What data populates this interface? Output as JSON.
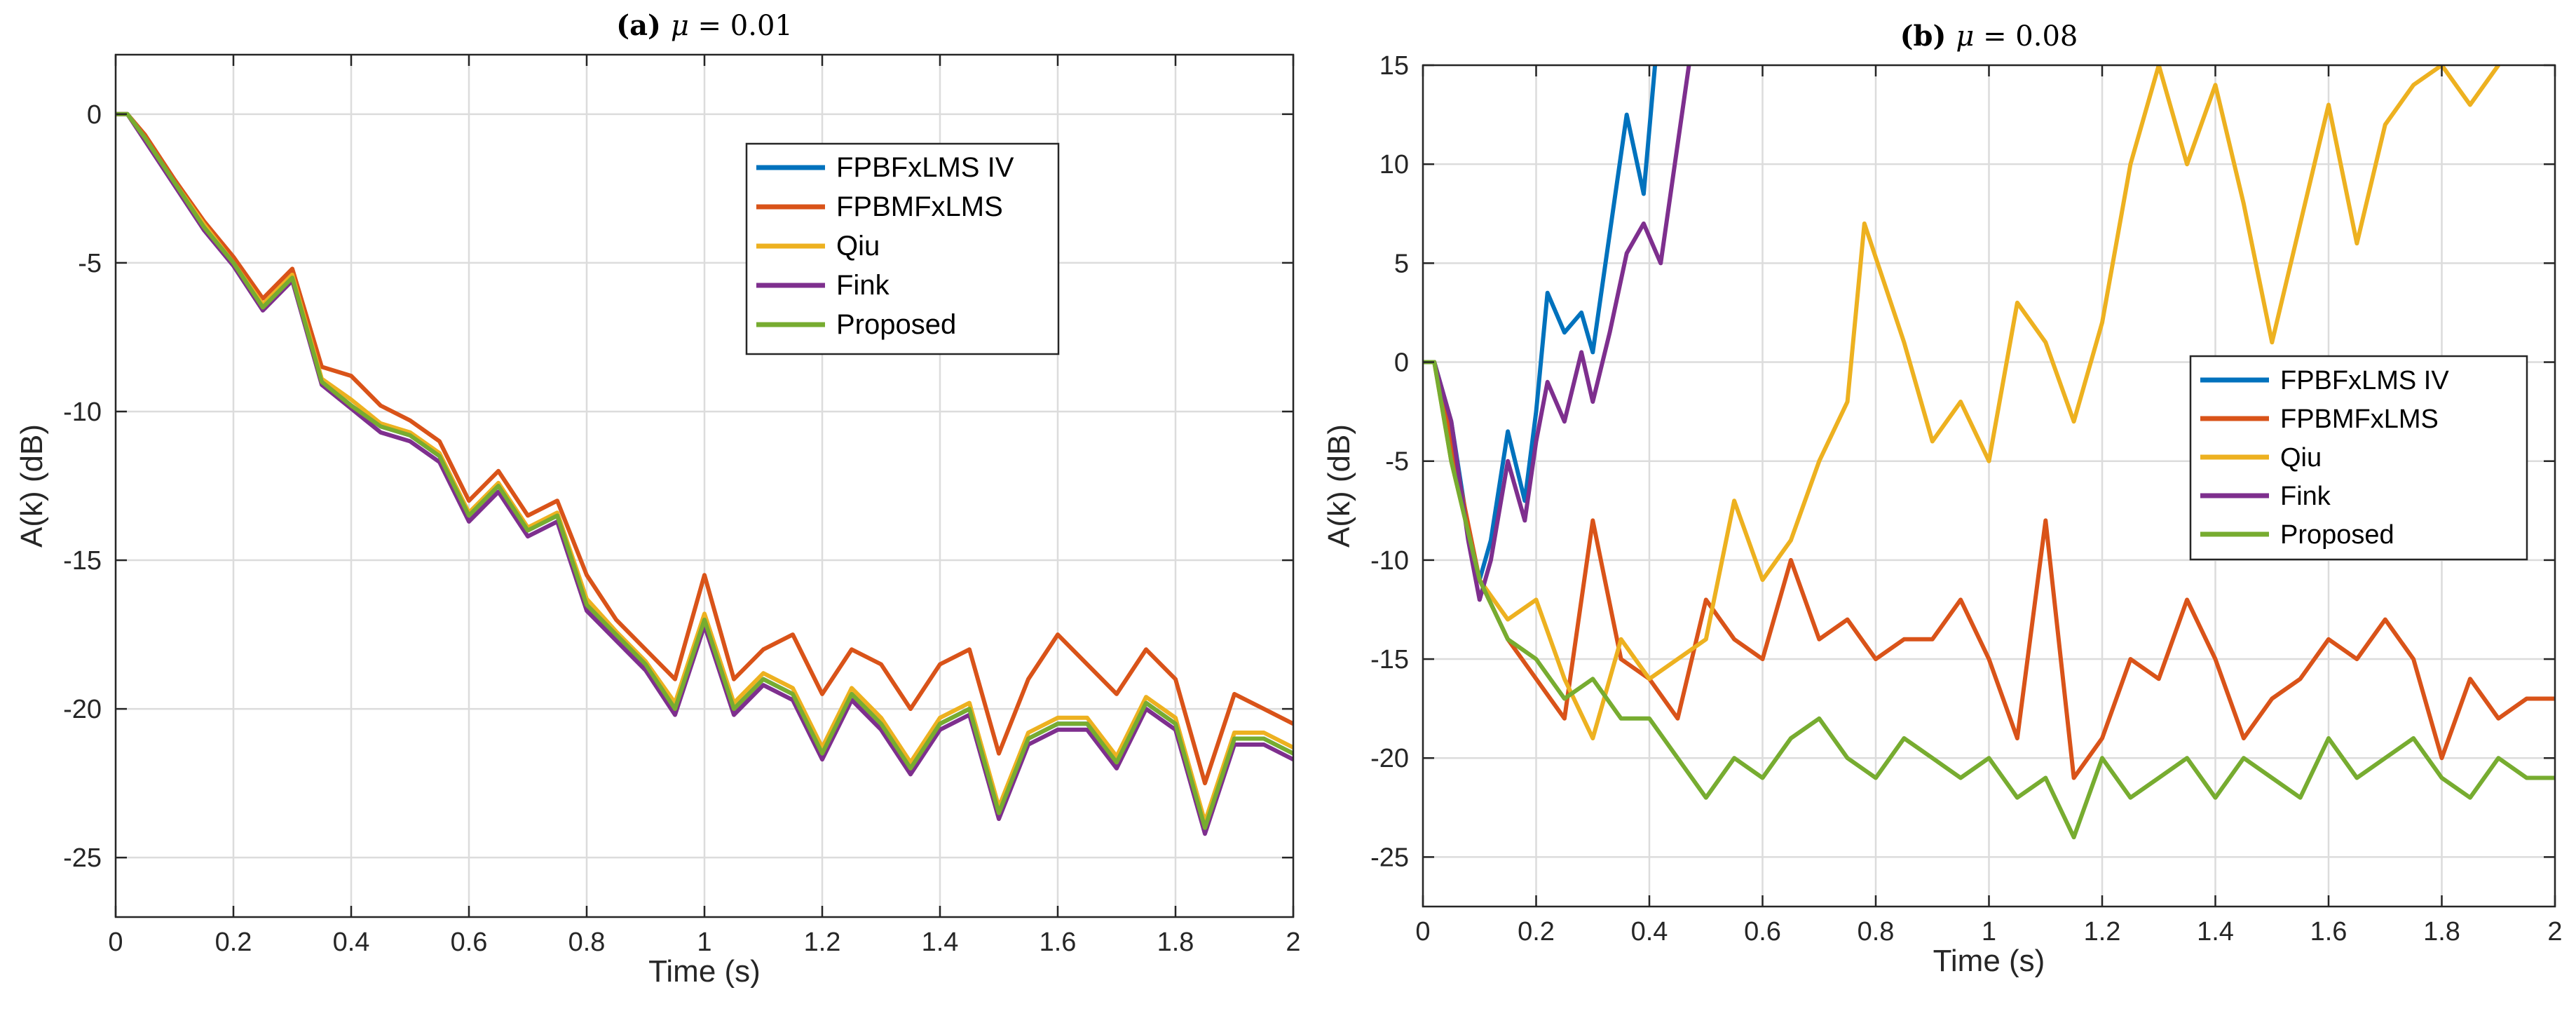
{
  "chart_data": [
    {
      "type": "line",
      "title": "(a) μ = 0.01",
      "title_prefix": "(a)",
      "title_symbol": "μ",
      "title_rest": "= 0.01",
      "xlabel": "Time (s)",
      "ylabel": "A(k) (dB)",
      "xlim": [
        0,
        2
      ],
      "ylim": [
        -27,
        2
      ],
      "xticks": [
        0,
        0.2,
        0.4,
        0.6,
        0.8,
        1,
        1.2,
        1.4,
        1.6,
        1.8,
        2
      ],
      "xtick_labels": [
        "0",
        "0.2",
        "0.4",
        "0.6",
        "0.8",
        "1",
        "1.2",
        "1.4",
        "1.6",
        "1.8",
        "2"
      ],
      "yticks": [
        0,
        -5,
        -10,
        -15,
        -20,
        -25
      ],
      "ytick_labels": [
        "0",
        "-5",
        "-10",
        "-15",
        "-20",
        "-25"
      ],
      "grid": true,
      "legend_position": "top-right",
      "series": [
        {
          "name": "FPBFxLMS IV",
          "color": "#0072BD",
          "x": [
            0,
            0.02,
            0.05,
            0.1,
            0.15,
            0.2,
            0.25,
            0.3,
            0.35,
            0.4,
            0.45,
            0.5,
            0.55,
            0.6,
            0.65,
            0.7,
            0.75,
            0.8,
            0.85,
            0.9,
            0.95,
            1.0,
            1.05,
            1.1,
            1.15,
            1.2,
            1.25,
            1.3,
            1.35,
            1.4,
            1.45,
            1.5,
            1.55,
            1.6,
            1.65,
            1.7,
            1.75,
            1.8,
            1.85,
            1.9,
            1.95,
            2.0
          ],
          "y": [
            0,
            0,
            -0.8,
            -2.3,
            -3.8,
            -5,
            -6.5,
            -5.5,
            -9,
            -9.8,
            -10.5,
            -10.8,
            -11.5,
            -13.5,
            -12.5,
            -14,
            -13.5,
            -16.5,
            -17.5,
            -18.5,
            -20,
            -17,
            -20,
            -19,
            -19.5,
            -21.5,
            -19.5,
            -20.5,
            -22,
            -20.5,
            -20,
            -23.5,
            -21,
            -20.5,
            -20.5,
            -21.8,
            -19.8,
            -20.5,
            -24,
            -21,
            -21,
            -21.5
          ]
        },
        {
          "name": "FPBMFxLMS",
          "color": "#D95319",
          "x": [
            0,
            0.02,
            0.05,
            0.1,
            0.15,
            0.2,
            0.25,
            0.3,
            0.35,
            0.4,
            0.45,
            0.5,
            0.55,
            0.6,
            0.65,
            0.7,
            0.75,
            0.8,
            0.85,
            0.9,
            0.95,
            1.0,
            1.05,
            1.1,
            1.15,
            1.2,
            1.25,
            1.3,
            1.35,
            1.4,
            1.45,
            1.5,
            1.55,
            1.6,
            1.65,
            1.7,
            1.75,
            1.8,
            1.85,
            1.9,
            1.95,
            2.0
          ],
          "y": [
            0,
            0,
            -0.7,
            -2.2,
            -3.6,
            -4.8,
            -6.2,
            -5.2,
            -8.5,
            -8.8,
            -9.8,
            -10.3,
            -11,
            -13,
            -12,
            -13.5,
            -13,
            -15.5,
            -17,
            -18,
            -19,
            -15.5,
            -19,
            -18,
            -17.5,
            -19.5,
            -18,
            -18.5,
            -20,
            -18.5,
            -18,
            -21.5,
            -19,
            -17.5,
            -18.5,
            -19.5,
            -18,
            -19,
            -22.5,
            -19.5,
            -20,
            -20.5
          ]
        },
        {
          "name": "Qiu",
          "color": "#EDB120",
          "x": [
            0,
            0.02,
            0.05,
            0.1,
            0.15,
            0.2,
            0.25,
            0.3,
            0.35,
            0.4,
            0.45,
            0.5,
            0.55,
            0.6,
            0.65,
            0.7,
            0.75,
            0.8,
            0.85,
            0.9,
            0.95,
            1.0,
            1.05,
            1.1,
            1.15,
            1.2,
            1.25,
            1.3,
            1.35,
            1.4,
            1.45,
            1.5,
            1.55,
            1.6,
            1.65,
            1.7,
            1.75,
            1.8,
            1.85,
            1.9,
            1.95,
            2.0
          ],
          "y": [
            0,
            0,
            -0.8,
            -2.3,
            -3.7,
            -5,
            -6.4,
            -5.4,
            -8.9,
            -9.6,
            -10.4,
            -10.7,
            -11.4,
            -13.4,
            -12.4,
            -13.9,
            -13.4,
            -16.3,
            -17.4,
            -18.4,
            -19.8,
            -16.8,
            -19.8,
            -18.8,
            -19.3,
            -21.3,
            -19.3,
            -20.3,
            -21.8,
            -20.3,
            -19.8,
            -23.3,
            -20.8,
            -20.3,
            -20.3,
            -21.6,
            -19.6,
            -20.3,
            -23.8,
            -20.8,
            -20.8,
            -21.3
          ]
        },
        {
          "name": "Fink",
          "color": "#7E2F8E",
          "x": [
            0,
            0.02,
            0.05,
            0.1,
            0.15,
            0.2,
            0.25,
            0.3,
            0.35,
            0.4,
            0.45,
            0.5,
            0.55,
            0.6,
            0.65,
            0.7,
            0.75,
            0.8,
            0.85,
            0.9,
            0.95,
            1.0,
            1.05,
            1.1,
            1.15,
            1.2,
            1.25,
            1.3,
            1.35,
            1.4,
            1.45,
            1.5,
            1.55,
            1.6,
            1.65,
            1.7,
            1.75,
            1.8,
            1.85,
            1.9,
            1.95,
            2.0
          ],
          "y": [
            0,
            0,
            -0.9,
            -2.4,
            -3.9,
            -5.1,
            -6.6,
            -5.6,
            -9.1,
            -9.9,
            -10.7,
            -11,
            -11.7,
            -13.7,
            -12.7,
            -14.2,
            -13.7,
            -16.7,
            -17.7,
            -18.7,
            -20.2,
            -17.2,
            -20.2,
            -19.2,
            -19.7,
            -21.7,
            -19.7,
            -20.7,
            -22.2,
            -20.7,
            -20.2,
            -23.7,
            -21.2,
            -20.7,
            -20.7,
            -22,
            -20,
            -20.7,
            -24.2,
            -21.2,
            -21.2,
            -21.7
          ]
        },
        {
          "name": "Proposed",
          "color": "#77AC30",
          "x": [
            0,
            0.02,
            0.05,
            0.1,
            0.15,
            0.2,
            0.25,
            0.3,
            0.35,
            0.4,
            0.45,
            0.5,
            0.55,
            0.6,
            0.65,
            0.7,
            0.75,
            0.8,
            0.85,
            0.9,
            0.95,
            1.0,
            1.05,
            1.1,
            1.15,
            1.2,
            1.25,
            1.3,
            1.35,
            1.4,
            1.45,
            1.5,
            1.55,
            1.6,
            1.65,
            1.7,
            1.75,
            1.8,
            1.85,
            1.9,
            1.95,
            2.0
          ],
          "y": [
            0,
            0,
            -0.8,
            -2.3,
            -3.8,
            -5,
            -6.5,
            -5.5,
            -9,
            -9.8,
            -10.5,
            -10.8,
            -11.5,
            -13.5,
            -12.5,
            -14,
            -13.5,
            -16.5,
            -17.5,
            -18.5,
            -20,
            -17,
            -20,
            -19,
            -19.5,
            -21.5,
            -19.5,
            -20.5,
            -22,
            -20.5,
            -20,
            -23.5,
            -21,
            -20.5,
            -20.5,
            -21.8,
            -19.8,
            -20.5,
            -24,
            -21,
            -21,
            -21.5
          ]
        }
      ]
    },
    {
      "type": "line",
      "title": "(b) μ = 0.08",
      "title_prefix": "(b)",
      "title_symbol": "μ",
      "title_rest": "= 0.08",
      "xlabel": "Time (s)",
      "ylabel": "A(k) (dB)",
      "xlim": [
        0,
        2
      ],
      "ylim": [
        -27.5,
        15
      ],
      "xticks": [
        0,
        0.2,
        0.4,
        0.6,
        0.8,
        1,
        1.2,
        1.4,
        1.6,
        1.8,
        2
      ],
      "xtick_labels": [
        "0",
        "0.2",
        "0.4",
        "0.6",
        "0.8",
        "1",
        "1.2",
        "1.4",
        "1.6",
        "1.8",
        "2"
      ],
      "yticks": [
        15,
        10,
        5,
        0,
        -5,
        -10,
        -15,
        -20,
        -25
      ],
      "ytick_labels": [
        "15",
        "10",
        "5",
        "0",
        "-5",
        "-10",
        "-15",
        "-20",
        "-25"
      ],
      "grid": true,
      "legend_position": "middle-right",
      "series": [
        {
          "name": "FPBFxLMS IV",
          "color": "#0072BD",
          "x": [
            0,
            0.02,
            0.05,
            0.08,
            0.1,
            0.12,
            0.15,
            0.18,
            0.2,
            0.22,
            0.25,
            0.28,
            0.3,
            0.33,
            0.36,
            0.39,
            0.41
          ],
          "y": [
            0,
            0,
            -3,
            -8.5,
            -11,
            -9,
            -3.5,
            -7,
            -2.5,
            3.5,
            1.5,
            2.5,
            0.5,
            6.5,
            12.5,
            8.5,
            15
          ]
        },
        {
          "name": "FPBMFxLMS",
          "color": "#D95319",
          "x": [
            0,
            0.02,
            0.05,
            0.1,
            0.15,
            0.2,
            0.25,
            0.3,
            0.35,
            0.4,
            0.45,
            0.5,
            0.55,
            0.6,
            0.65,
            0.7,
            0.75,
            0.8,
            0.85,
            0.9,
            0.95,
            1.0,
            1.05,
            1.1,
            1.15,
            1.2,
            1.25,
            1.3,
            1.35,
            1.4,
            1.45,
            1.5,
            1.55,
            1.6,
            1.65,
            1.7,
            1.75,
            1.8,
            1.85,
            1.9,
            1.95,
            2.0
          ],
          "y": [
            0,
            0,
            -4,
            -11,
            -14,
            -16,
            -18,
            -8,
            -15,
            -16,
            -18,
            -12,
            -14,
            -15,
            -10,
            -14,
            -13,
            -15,
            -14,
            -14,
            -12,
            -15,
            -19,
            -8,
            -21,
            -19,
            -15,
            -16,
            -12,
            -15,
            -19,
            -17,
            -16,
            -14,
            -15,
            -13,
            -15,
            -20,
            -16,
            -18,
            -17,
            -17
          ]
        },
        {
          "name": "Qiu",
          "color": "#EDB120",
          "x": [
            0,
            0.02,
            0.05,
            0.1,
            0.15,
            0.2,
            0.25,
            0.3,
            0.35,
            0.4,
            0.45,
            0.5,
            0.55,
            0.6,
            0.65,
            0.7,
            0.75,
            0.78,
            0.85,
            0.9,
            0.95,
            1.0,
            1.05,
            1.1,
            1.15,
            1.2,
            1.25,
            1.3,
            1.35,
            1.4,
            1.45,
            1.5,
            1.55,
            1.6,
            1.65,
            1.7,
            1.75,
            1.8,
            1.85,
            1.9
          ],
          "y": [
            0,
            0,
            -5,
            -11,
            -13,
            -12,
            -16,
            -19,
            -14,
            -16,
            -15,
            -14,
            -7,
            -11,
            -9,
            -5,
            -2,
            7,
            1,
            -4,
            -2,
            -5,
            3,
            1,
            -3,
            2,
            10,
            15,
            10,
            14,
            8,
            1,
            7,
            13,
            6,
            12,
            14,
            15,
            13,
            15
          ]
        },
        {
          "name": "Fink",
          "color": "#7E2F8E",
          "x": [
            0,
            0.02,
            0.05,
            0.08,
            0.1,
            0.12,
            0.15,
            0.18,
            0.2,
            0.22,
            0.25,
            0.28,
            0.3,
            0.33,
            0.36,
            0.39,
            0.42,
            0.44,
            0.47
          ],
          "y": [
            0,
            0,
            -3,
            -9,
            -12,
            -10,
            -5,
            -8,
            -4,
            -1,
            -3,
            0.5,
            -2,
            1.5,
            5.5,
            7,
            5,
            9,
            15
          ]
        },
        {
          "name": "Proposed",
          "color": "#77AC30",
          "x": [
            0,
            0.02,
            0.05,
            0.1,
            0.15,
            0.2,
            0.25,
            0.3,
            0.35,
            0.4,
            0.45,
            0.5,
            0.55,
            0.6,
            0.65,
            0.7,
            0.75,
            0.8,
            0.85,
            0.9,
            0.95,
            1.0,
            1.05,
            1.1,
            1.15,
            1.2,
            1.25,
            1.3,
            1.35,
            1.4,
            1.45,
            1.5,
            1.55,
            1.6,
            1.65,
            1.7,
            1.75,
            1.8,
            1.85,
            1.9,
            1.95,
            2.0
          ],
          "y": [
            0,
            0,
            -5,
            -11,
            -14,
            -15,
            -17,
            -16,
            -18,
            -18,
            -20,
            -22,
            -20,
            -21,
            -19,
            -18,
            -20,
            -21,
            -19,
            -20,
            -21,
            -20,
            -22,
            -21,
            -24,
            -20,
            -22,
            -21,
            -20,
            -22,
            -20,
            -21,
            -22,
            -19,
            -21,
            -20,
            -19,
            -21,
            -22,
            -20,
            -21,
            -21
          ]
        }
      ]
    }
  ]
}
